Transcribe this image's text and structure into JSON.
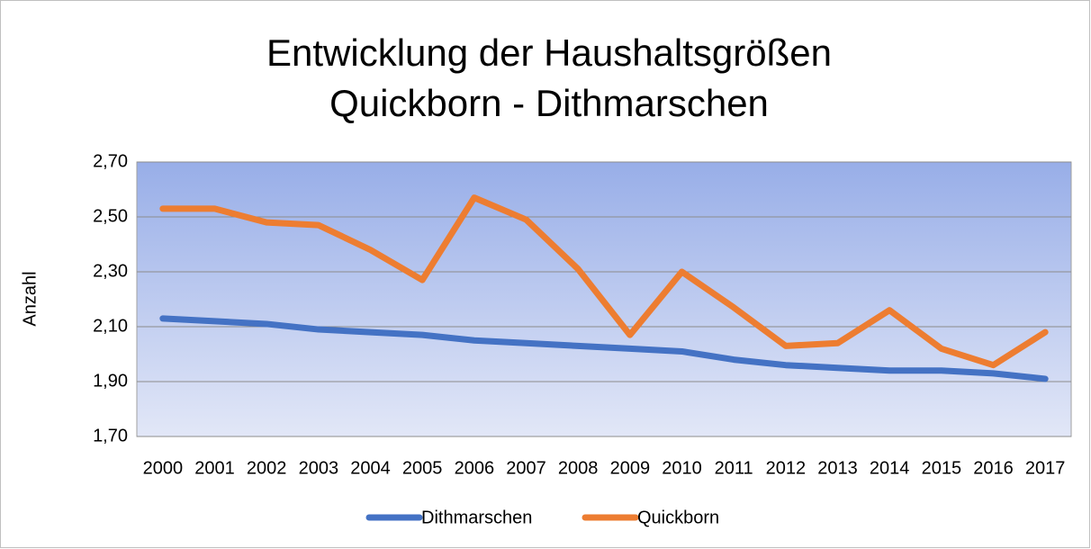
{
  "chart_data": {
    "type": "line",
    "title": "Entwicklung der Haushaltsgrößen",
    "subtitle": "Quickborn - Dithmarschen",
    "y_label": "Anzahl",
    "categories": [
      "2000",
      "2001",
      "2002",
      "2003",
      "2004",
      "2005",
      "2006",
      "2007",
      "2008",
      "2009",
      "2010",
      "2011",
      "2012",
      "2013",
      "2014",
      "2015",
      "2016",
      "2017"
    ],
    "series": [
      {
        "name": "Dithmarschen",
        "color": "#4472c4",
        "values": [
          2.13,
          2.12,
          2.11,
          2.09,
          2.08,
          2.07,
          2.05,
          2.04,
          2.03,
          2.02,
          2.01,
          1.98,
          1.96,
          1.95,
          1.94,
          1.94,
          1.93,
          1.91
        ]
      },
      {
        "name": "Quickborn",
        "color": "#ed7d31",
        "values": [
          2.53,
          2.53,
          2.48,
          2.47,
          2.38,
          2.27,
          2.57,
          2.49,
          2.31,
          2.07,
          2.3,
          2.17,
          2.03,
          2.04,
          2.16,
          2.02,
          1.96,
          2.08
        ]
      }
    ],
    "ylim": [
      1.7,
      2.7
    ],
    "yticks": [
      {
        "value": 1.7,
        "label": "1,70"
      },
      {
        "value": 1.9,
        "label": "1,90"
      },
      {
        "value": 2.1,
        "label": "2,10"
      },
      {
        "value": 2.3,
        "label": "2,30"
      },
      {
        "value": 2.5,
        "label": "2,50"
      },
      {
        "value": 2.7,
        "label": "2,70"
      }
    ],
    "grid": true,
    "legend": "bottom"
  }
}
